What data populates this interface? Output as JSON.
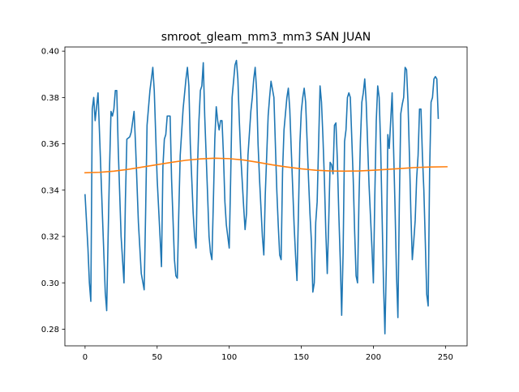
{
  "chart_data": {
    "type": "line",
    "title": "smroot_gleam_mm3_mm3 SAN JUAN",
    "xlabel": "",
    "ylabel": "",
    "xlim": [
      -14,
      265
    ],
    "ylim": [
      0.2728,
      0.4018
    ],
    "xticks": [
      0,
      50,
      100,
      150,
      200,
      250
    ],
    "xtick_labels": [
      "0",
      "50",
      "100",
      "150",
      "200",
      "250"
    ],
    "yticks": [
      0.28,
      0.3,
      0.32,
      0.34,
      0.36,
      0.38,
      0.4
    ],
    "ytick_labels": [
      "0.28",
      "0.30",
      "0.32",
      "0.34",
      "0.36",
      "0.38",
      "0.40"
    ],
    "grid": false,
    "series": [
      {
        "color": "#1f77b4",
        "points": [
          [
            0,
            0.338
          ],
          [
            2,
            0.315
          ],
          [
            3,
            0.3
          ],
          [
            4,
            0.292
          ],
          [
            5,
            0.375
          ],
          [
            6,
            0.38
          ],
          [
            7,
            0.37
          ],
          [
            9,
            0.382
          ],
          [
            10,
            0.365
          ],
          [
            12,
            0.33
          ],
          [
            14,
            0.296
          ],
          [
            15,
            0.288
          ],
          [
            16,
            0.32
          ],
          [
            17,
            0.35
          ],
          [
            18,
            0.374
          ],
          [
            19,
            0.372
          ],
          [
            20,
            0.375
          ],
          [
            21,
            0.383
          ],
          [
            22,
            0.383
          ],
          [
            23,
            0.358
          ],
          [
            25,
            0.32
          ],
          [
            27,
            0.3
          ],
          [
            28,
            0.336
          ],
          [
            29,
            0.362
          ],
          [
            31,
            0.363
          ],
          [
            32,
            0.365
          ],
          [
            34,
            0.374
          ],
          [
            35,
            0.36
          ],
          [
            37,
            0.326
          ],
          [
            39,
            0.304
          ],
          [
            41,
            0.297
          ],
          [
            42,
            0.33
          ],
          [
            43,
            0.368
          ],
          [
            45,
            0.383
          ],
          [
            47,
            0.393
          ],
          [
            48,
            0.383
          ],
          [
            50,
            0.345
          ],
          [
            52,
            0.32
          ],
          [
            53,
            0.307
          ],
          [
            54,
            0.35
          ],
          [
            55,
            0.362
          ],
          [
            56,
            0.364
          ],
          [
            57,
            0.372
          ],
          [
            59,
            0.372
          ],
          [
            60,
            0.345
          ],
          [
            62,
            0.31
          ],
          [
            63,
            0.303
          ],
          [
            64,
            0.302
          ],
          [
            65,
            0.33
          ],
          [
            66,
            0.355
          ],
          [
            68,
            0.375
          ],
          [
            70,
            0.388
          ],
          [
            71,
            0.393
          ],
          [
            72,
            0.385
          ],
          [
            73,
            0.36
          ],
          [
            75,
            0.33
          ],
          [
            76,
            0.32
          ],
          [
            77,
            0.315
          ],
          [
            78,
            0.35
          ],
          [
            79,
            0.37
          ],
          [
            80,
            0.383
          ],
          [
            81,
            0.385
          ],
          [
            82,
            0.395
          ],
          [
            83,
            0.372
          ],
          [
            84,
            0.355
          ],
          [
            85,
            0.338
          ],
          [
            86,
            0.32
          ],
          [
            87,
            0.313
          ],
          [
            88,
            0.31
          ],
          [
            89,
            0.335
          ],
          [
            90,
            0.362
          ],
          [
            91,
            0.376
          ],
          [
            92,
            0.37
          ],
          [
            93,
            0.366
          ],
          [
            94,
            0.37
          ],
          [
            95,
            0.37
          ],
          [
            96,
            0.355
          ],
          [
            97,
            0.335
          ],
          [
            98,
            0.325
          ],
          [
            100,
            0.315
          ],
          [
            101,
            0.345
          ],
          [
            102,
            0.38
          ],
          [
            104,
            0.394
          ],
          [
            105,
            0.396
          ],
          [
            106,
            0.388
          ],
          [
            107,
            0.37
          ],
          [
            108,
            0.355
          ],
          [
            110,
            0.333
          ],
          [
            111,
            0.323
          ],
          [
            112,
            0.33
          ],
          [
            113,
            0.355
          ],
          [
            115,
            0.374
          ],
          [
            116,
            0.38
          ],
          [
            117,
            0.388
          ],
          [
            118,
            0.393
          ],
          [
            119,
            0.383
          ],
          [
            120,
            0.36
          ],
          [
            121,
            0.345
          ],
          [
            123,
            0.32
          ],
          [
            124,
            0.312
          ],
          [
            125,
            0.338
          ],
          [
            126,
            0.355
          ],
          [
            127,
            0.372
          ],
          [
            128,
            0.38
          ],
          [
            129,
            0.387
          ],
          [
            131,
            0.38
          ],
          [
            133,
            0.34
          ],
          [
            134,
            0.325
          ],
          [
            135,
            0.312
          ],
          [
            136,
            0.31
          ],
          [
            137,
            0.348
          ],
          [
            138,
            0.366
          ],
          [
            139,
            0.373
          ],
          [
            140,
            0.38
          ],
          [
            141,
            0.384
          ],
          [
            142,
            0.375
          ],
          [
            143,
            0.358
          ],
          [
            145,
            0.325
          ],
          [
            146,
            0.312
          ],
          [
            147,
            0.301
          ],
          [
            148,
            0.33
          ],
          [
            149,
            0.36
          ],
          [
            150,
            0.374
          ],
          [
            151,
            0.38
          ],
          [
            152,
            0.384
          ],
          [
            153,
            0.378
          ],
          [
            155,
            0.345
          ],
          [
            156,
            0.33
          ],
          [
            157,
            0.318
          ],
          [
            158,
            0.296
          ],
          [
            159,
            0.3
          ],
          [
            160,
            0.326
          ],
          [
            161,
            0.335
          ],
          [
            162,
            0.36
          ],
          [
            163,
            0.385
          ],
          [
            164,
            0.378
          ],
          [
            165,
            0.363
          ],
          [
            166,
            0.345
          ],
          [
            167,
            0.322
          ],
          [
            168,
            0.304
          ],
          [
            169,
            0.326
          ],
          [
            170,
            0.352
          ],
          [
            171,
            0.351
          ],
          [
            172,
            0.347
          ],
          [
            173,
            0.368
          ],
          [
            174,
            0.369
          ],
          [
            175,
            0.353
          ],
          [
            176,
            0.33
          ],
          [
            177,
            0.31
          ],
          [
            178,
            0.286
          ],
          [
            179,
            0.313
          ],
          [
            180,
            0.361
          ],
          [
            181,
            0.366
          ],
          [
            182,
            0.38
          ],
          [
            183,
            0.382
          ],
          [
            184,
            0.38
          ],
          [
            186,
            0.345
          ],
          [
            187,
            0.322
          ],
          [
            188,
            0.303
          ],
          [
            189,
            0.3
          ],
          [
            190,
            0.336
          ],
          [
            191,
            0.361
          ],
          [
            192,
            0.378
          ],
          [
            193,
            0.382
          ],
          [
            194,
            0.388
          ],
          [
            195,
            0.378
          ],
          [
            196,
            0.36
          ],
          [
            197,
            0.342
          ],
          [
            199,
            0.315
          ],
          [
            200,
            0.3
          ],
          [
            201,
            0.338
          ],
          [
            202,
            0.37
          ],
          [
            203,
            0.385
          ],
          [
            204,
            0.38
          ],
          [
            205,
            0.36
          ],
          [
            206,
            0.33
          ],
          [
            207,
            0.3
          ],
          [
            208,
            0.278
          ],
          [
            209,
            0.308
          ],
          [
            210,
            0.364
          ],
          [
            211,
            0.358
          ],
          [
            212,
            0.37
          ],
          [
            213,
            0.382
          ],
          [
            214,
            0.358
          ],
          [
            215,
            0.333
          ],
          [
            216,
            0.304
          ],
          [
            217,
            0.285
          ],
          [
            218,
            0.334
          ],
          [
            219,
            0.373
          ],
          [
            220,
            0.377
          ],
          [
            221,
            0.38
          ],
          [
            222,
            0.393
          ],
          [
            223,
            0.392
          ],
          [
            224,
            0.378
          ],
          [
            225,
            0.355
          ],
          [
            226,
            0.33
          ],
          [
            227,
            0.31
          ],
          [
            228,
            0.318
          ],
          [
            229,
            0.327
          ],
          [
            230,
            0.345
          ],
          [
            231,
            0.355
          ],
          [
            232,
            0.375
          ],
          [
            233,
            0.375
          ],
          [
            234,
            0.355
          ],
          [
            235,
            0.34
          ],
          [
            236,
            0.318
          ],
          [
            237,
            0.295
          ],
          [
            238,
            0.29
          ],
          [
            239,
            0.348
          ],
          [
            240,
            0.378
          ],
          [
            241,
            0.38
          ],
          [
            242,
            0.388
          ],
          [
            243,
            0.389
          ],
          [
            244,
            0.388
          ],
          [
            245,
            0.371
          ]
        ]
      },
      {
        "color": "#ff7f0e",
        "points": [
          [
            0,
            0.3475
          ],
          [
            10,
            0.3477
          ],
          [
            20,
            0.3482
          ],
          [
            30,
            0.349
          ],
          [
            40,
            0.35
          ],
          [
            50,
            0.351
          ],
          [
            60,
            0.352
          ],
          [
            70,
            0.3529
          ],
          [
            80,
            0.3535
          ],
          [
            90,
            0.3538
          ],
          [
            100,
            0.3536
          ],
          [
            110,
            0.353
          ],
          [
            120,
            0.352
          ],
          [
            130,
            0.3509
          ],
          [
            140,
            0.35
          ],
          [
            150,
            0.3492
          ],
          [
            160,
            0.3486
          ],
          [
            170,
            0.3483
          ],
          [
            180,
            0.3482
          ],
          [
            190,
            0.3483
          ],
          [
            200,
            0.3486
          ],
          [
            210,
            0.349
          ],
          [
            220,
            0.3494
          ],
          [
            230,
            0.3498
          ],
          [
            240,
            0.35
          ],
          [
            251,
            0.3501
          ]
        ]
      }
    ]
  }
}
